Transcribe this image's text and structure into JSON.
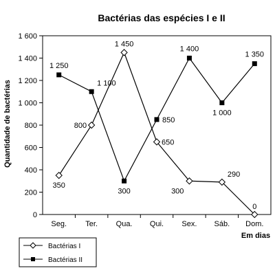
{
  "chart_data": {
    "type": "line",
    "title": "Bactérias das espécies I e II",
    "xlabel": "Em dias",
    "ylabel": "Quantidade de bactérias",
    "categories": [
      "Seg.",
      "Ter.",
      "Qua.",
      "Qui.",
      "Sex.",
      "Sáb.",
      "Dom."
    ],
    "ylim": [
      0,
      1600
    ],
    "yticks": [
      0,
      200,
      400,
      600,
      800,
      1000,
      1200,
      1400,
      1600
    ],
    "ytick_labels": [
      "0",
      "200",
      "400",
      "600",
      "800",
      "1 000",
      "1 200",
      "1 400",
      "1 600"
    ],
    "grid": false,
    "legend_position": "bottom-left",
    "series": [
      {
        "name": "Bactérias I",
        "marker": "diamond-open",
        "values": [
          350,
          800,
          1450,
          650,
          300,
          290,
          0
        ],
        "labels": [
          "350",
          "800",
          "1 450",
          "650",
          "300",
          "290",
          "0"
        ]
      },
      {
        "name": "Bactérias II",
        "marker": "square-filled",
        "values": [
          1250,
          1100,
          300,
          850,
          1400,
          1000,
          1350
        ],
        "labels": [
          "1 250",
          "1 100",
          "300",
          "850",
          "1 400",
          "1 000",
          "1 350"
        ]
      }
    ]
  }
}
